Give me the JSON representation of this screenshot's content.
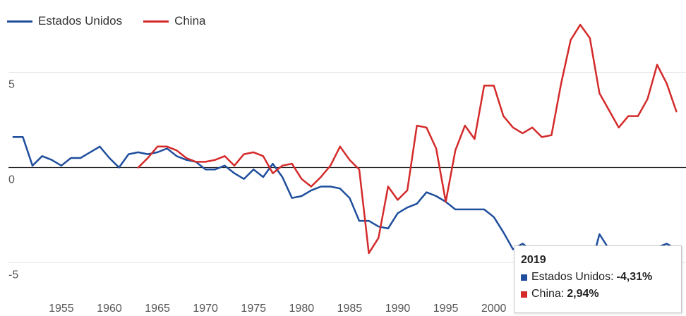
{
  "chart_data": {
    "type": "line",
    "title": "",
    "xlabel": "",
    "ylabel": "",
    "xlim": [
      1949.5,
      2020
    ],
    "ylim": [
      -7.8,
      8.8
    ],
    "x_ticks": [
      "1955",
      "1960",
      "1965",
      "1970",
      "1975",
      "1980",
      "1985",
      "1990",
      "1995",
      "2000"
    ],
    "y_ticks": [
      "5",
      "0",
      "-5"
    ],
    "grid": "horizontal",
    "legend": "top-left",
    "colors": {
      "us": "#1f4e9c",
      "china": "#d42a2a"
    },
    "series": [
      {
        "name": "Estados Unidos",
        "x": [
          1950,
          1951,
          1952,
          1953,
          1954,
          1955,
          1956,
          1957,
          1958,
          1959,
          1960,
          1961,
          1962,
          1963,
          1964,
          1965,
          1966,
          1967,
          1968,
          1969,
          1970,
          1971,
          1972,
          1973,
          1974,
          1975,
          1976,
          1977,
          1978,
          1979,
          1980,
          1981,
          1982,
          1983,
          1984,
          1985,
          1986,
          1987,
          1988,
          1989,
          1990,
          1991,
          1992,
          1993,
          1994,
          1995,
          1996,
          1997,
          1998,
          1999,
          2000,
          2001,
          2002,
          2003,
          2004,
          2005,
          2006,
          2007,
          2008,
          2009,
          2010,
          2011,
          2012,
          2013,
          2014,
          2015,
          2016,
          2017,
          2018,
          2019
        ],
        "values": [
          1.6,
          1.6,
          0.1,
          0.6,
          0.4,
          0.1,
          0.5,
          0.5,
          0.8,
          1.1,
          0.5,
          0.0,
          0.7,
          0.8,
          0.7,
          0.8,
          1.0,
          0.6,
          0.4,
          0.3,
          -0.1,
          -0.1,
          0.1,
          -0.3,
          -0.6,
          -0.1,
          -0.5,
          0.2,
          -0.5,
          -1.6,
          -1.5,
          -1.2,
          -1.0,
          -1.0,
          -1.1,
          -1.6,
          -2.8,
          -2.8,
          -3.1,
          -3.2,
          -2.4,
          -2.1,
          -1.9,
          -1.3,
          -1.5,
          -1.8,
          -2.2,
          -2.2,
          -2.2,
          -2.2,
          -2.6,
          -3.4,
          -4.3,
          -4.0,
          -4.4,
          -4.8,
          -5.6,
          -5.5,
          -5.6,
          -5.4,
          -5.4,
          -3.5,
          -4.3,
          -4.7,
          -4.6,
          -4.2,
          -4.2,
          -4.2,
          -4.0,
          -4.31
        ]
      },
      {
        "name": "China",
        "x": [
          1963,
          1964,
          1965,
          1966,
          1967,
          1968,
          1969,
          1970,
          1971,
          1972,
          1973,
          1974,
          1975,
          1976,
          1977,
          1978,
          1979,
          1980,
          1981,
          1982,
          1983,
          1984,
          1985,
          1986,
          1987,
          1988,
          1989,
          1990,
          1991,
          1992,
          1993,
          1994,
          1995,
          1996,
          1997,
          1998,
          1999,
          2000,
          2001,
          2002,
          2003,
          2004,
          2005,
          2006,
          2007,
          2008,
          2009,
          2010,
          2011,
          2012,
          2013,
          2014,
          2015,
          2016,
          2017,
          2018,
          2019
        ],
        "values": [
          0.0,
          0.5,
          1.1,
          1.1,
          0.9,
          0.5,
          0.3,
          0.3,
          0.4,
          0.6,
          0.1,
          0.7,
          0.8,
          0.6,
          -0.3,
          0.1,
          0.2,
          -0.6,
          -1.0,
          -0.5,
          0.1,
          1.1,
          0.4,
          -0.1,
          -4.5,
          -3.7,
          -1.0,
          -1.7,
          -1.2,
          2.2,
          2.1,
          1.0,
          -1.8,
          0.9,
          2.2,
          1.5,
          4.3,
          4.3,
          2.7,
          2.1,
          1.8,
          2.1,
          1.6,
          1.7,
          4.4,
          6.7,
          7.5,
          6.8,
          3.9,
          3.0,
          2.1,
          2.7,
          2.7,
          3.6,
          5.4,
          4.4,
          2.94
        ]
      }
    ],
    "tooltip": {
      "title": "2019",
      "rows": [
        {
          "label": "Estados Unidos:",
          "value": "-4,31%"
        },
        {
          "label": "China:",
          "value": "2,94%"
        }
      ]
    }
  }
}
